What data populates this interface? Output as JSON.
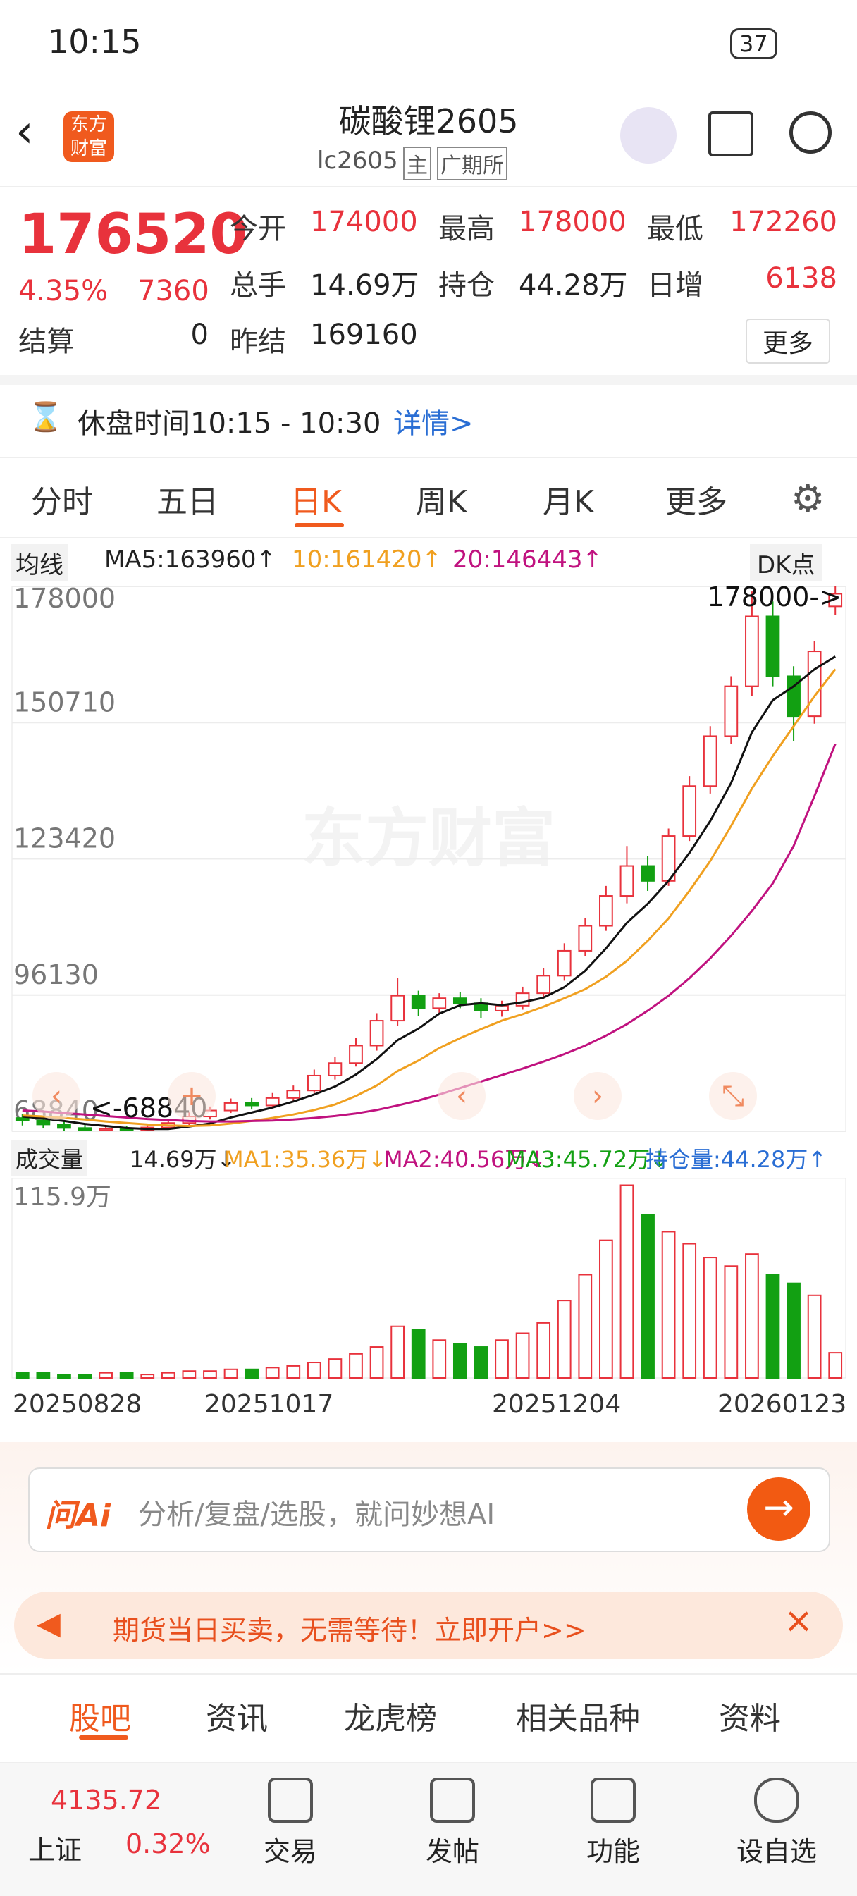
{
  "status_bar": {
    "time": "10:15",
    "battery": "37"
  },
  "header": {
    "logo": "东方财富",
    "title": "碳酸锂2605",
    "code": "lc2605",
    "tag": "主",
    "exchange": "广期所"
  },
  "quote": {
    "price": "176520",
    "change_pct": "4.35%",
    "change": "7360",
    "fields": [
      {
        "label": "今开",
        "value": "174000"
      },
      {
        "label": "最高",
        "value": "178000"
      },
      {
        "label": "最低",
        "value": "172260"
      },
      {
        "label": "总手",
        "value": "14.69万"
      },
      {
        "label": "持仓",
        "value": "44.28万"
      },
      {
        "label": "日增",
        "value": "6138"
      },
      {
        "label": "结算",
        "value": "0"
      },
      {
        "label": "昨结",
        "value": "169160"
      }
    ],
    "more": "更多"
  },
  "break_notice": {
    "text": "休盘时间10:15 - 10:30",
    "link": "详情>"
  },
  "tabs": [
    "分时",
    "五日",
    "日K",
    "周K",
    "月K",
    "更多"
  ],
  "chart_data": [
    {
      "type": "candlestick",
      "legend": {
        "selector": "均线",
        "ma5": "MA5:163960↑",
        "ma10": "10:161420↑",
        "ma20": "20:146443↑",
        "dk": "DK点"
      },
      "watermark": "东方财富",
      "max_label": "178000->",
      "min_label": "<-68840",
      "ylim": [
        68840,
        178000
      ],
      "yticks": [
        68840,
        96130,
        123420,
        150710,
        178000
      ],
      "grid": true,
      "up_color": "#e8323c",
      "down_color": "#12a012",
      "candles": [
        [
          71500,
          72300,
          70000,
          71000
        ],
        [
          71000,
          71800,
          69400,
          70200
        ],
        [
          70200,
          70900,
          68900,
          69500
        ],
        [
          69500,
          70100,
          68840,
          69000
        ],
        [
          69000,
          70000,
          68840,
          69300
        ],
        [
          69300,
          69900,
          68840,
          69000
        ],
        [
          69000,
          70400,
          68900,
          69600
        ],
        [
          69600,
          71300,
          69200,
          70500
        ],
        [
          70500,
          72600,
          70000,
          71800
        ],
        [
          71800,
          73800,
          71200,
          73000
        ],
        [
          73000,
          75400,
          72500,
          74500
        ],
        [
          74500,
          75500,
          73200,
          74000
        ],
        [
          74000,
          76500,
          73500,
          75500
        ],
        [
          75500,
          78000,
          74800,
          77000
        ],
        [
          77000,
          81200,
          76500,
          80000
        ],
        [
          80000,
          83800,
          79200,
          82500
        ],
        [
          82500,
          87500,
          81800,
          86000
        ],
        [
          86000,
          92500,
          85000,
          91000
        ],
        [
          91000,
          99500,
          90000,
          96000
        ],
        [
          96000,
          97000,
          92000,
          93500
        ],
        [
          93500,
          96500,
          92500,
          95500
        ],
        [
          95500,
          96800,
          93500,
          94500
        ],
        [
          94500,
          95500,
          91500,
          93000
        ],
        [
          93000,
          95000,
          91800,
          94000
        ],
        [
          94000,
          97800,
          93200,
          96500
        ],
        [
          96500,
          101500,
          95800,
          100000
        ],
        [
          100000,
          106500,
          99000,
          105000
        ],
        [
          105000,
          111500,
          104000,
          110000
        ],
        [
          110000,
          118000,
          109000,
          116000
        ],
        [
          116000,
          126000,
          114500,
          122000
        ],
        [
          122000,
          124000,
          117000,
          119000
        ],
        [
          119000,
          129500,
          118000,
          128000
        ],
        [
          128000,
          140000,
          127000,
          138000
        ],
        [
          138000,
          150000,
          136500,
          148000
        ],
        [
          148000,
          160000,
          146500,
          158000
        ],
        [
          158000,
          177000,
          156000,
          172000
        ],
        [
          172000,
          175000,
          158000,
          160000
        ],
        [
          160000,
          162000,
          147000,
          152000
        ],
        [
          152000,
          167000,
          150500,
          165000
        ],
        [
          174000,
          178000,
          172260,
          176520
        ]
      ],
      "series": [
        {
          "name": "MA5",
          "color": "#111111",
          "values": [
            71800,
            71400,
            70900,
            70300,
            69900,
            69500,
            69300,
            69300,
            69800,
            70400,
            71600,
            72600,
            73600,
            74800,
            76200,
            77800,
            80200,
            83300,
            87100,
            89400,
            92400,
            94100,
            94500,
            94100,
            94700,
            95600,
            97700,
            101000,
            105500,
            110600,
            114400,
            119000,
            124600,
            131000,
            138600,
            148800,
            155200,
            158000,
            161400,
            163960
          ]
        },
        {
          "name": "MA10",
          "color": "#f0a020",
          "values": [
            72000,
            71800,
            71500,
            71200,
            70800,
            70500,
            70200,
            70000,
            69900,
            70000,
            70400,
            70900,
            71500,
            72200,
            73100,
            74200,
            75900,
            78000,
            80900,
            83000,
            85500,
            87500,
            89300,
            91000,
            92300,
            93800,
            95500,
            97300,
            99800,
            103000,
            107000,
            111500,
            117000,
            123000,
            130000,
            137500,
            144000,
            150000,
            156000,
            161420
          ]
        },
        {
          "name": "MA20",
          "color": "#c0127f",
          "values": [
            73000,
            72800,
            72500,
            72200,
            71900,
            71600,
            71300,
            71100,
            70900,
            70800,
            70800,
            70900,
            71000,
            71200,
            71500,
            71900,
            72400,
            73100,
            74000,
            75000,
            76200,
            77500,
            78800,
            80100,
            81400,
            82800,
            84300,
            86000,
            88000,
            90300,
            93000,
            96000,
            99500,
            103500,
            108000,
            113000,
            118500,
            126000,
            136000,
            146443
          ]
        }
      ]
    },
    {
      "type": "bar",
      "legend": {
        "selector": "成交量",
        "vol": "14.69万↓",
        "ma1": "MA1:35.36万↓",
        "ma2": "MA2:40.56万↓",
        "ma3": "MA3:45.72万↓",
        "oi": "持仓量:44.28万↑"
      },
      "ylim": [
        0,
        115.9
      ],
      "yticks": [
        {
          "value": 115.9,
          "label": "115.9万"
        }
      ],
      "values": [
        3,
        3,
        2,
        2,
        3,
        3,
        2,
        3,
        4,
        4,
        5,
        5,
        6,
        7,
        9,
        11,
        14,
        18,
        30,
        28,
        22,
        20,
        18,
        22,
        26,
        32,
        45,
        60,
        80,
        112,
        95,
        85,
        78,
        70,
        65,
        72,
        60,
        55,
        48,
        14.69
      ],
      "x_labels": [
        "20250828",
        "20251017",
        "20251204",
        "20260123"
      ]
    }
  ],
  "ai_box": {
    "logo": "问Ai",
    "placeholder": "分析/复盘/选股，就问妙想AI"
  },
  "banner": {
    "text": "期货当日买卖，无需等待！立即开户>>"
  },
  "section_tabs": [
    "股吧",
    "资讯",
    "龙虎榜",
    "相关品种",
    "资料"
  ],
  "bottom_nav": {
    "index_value": "4135.72",
    "index_name": "上证",
    "index_pct": "0.32%",
    "items": [
      "交易",
      "发帖",
      "功能",
      "设自选"
    ]
  }
}
